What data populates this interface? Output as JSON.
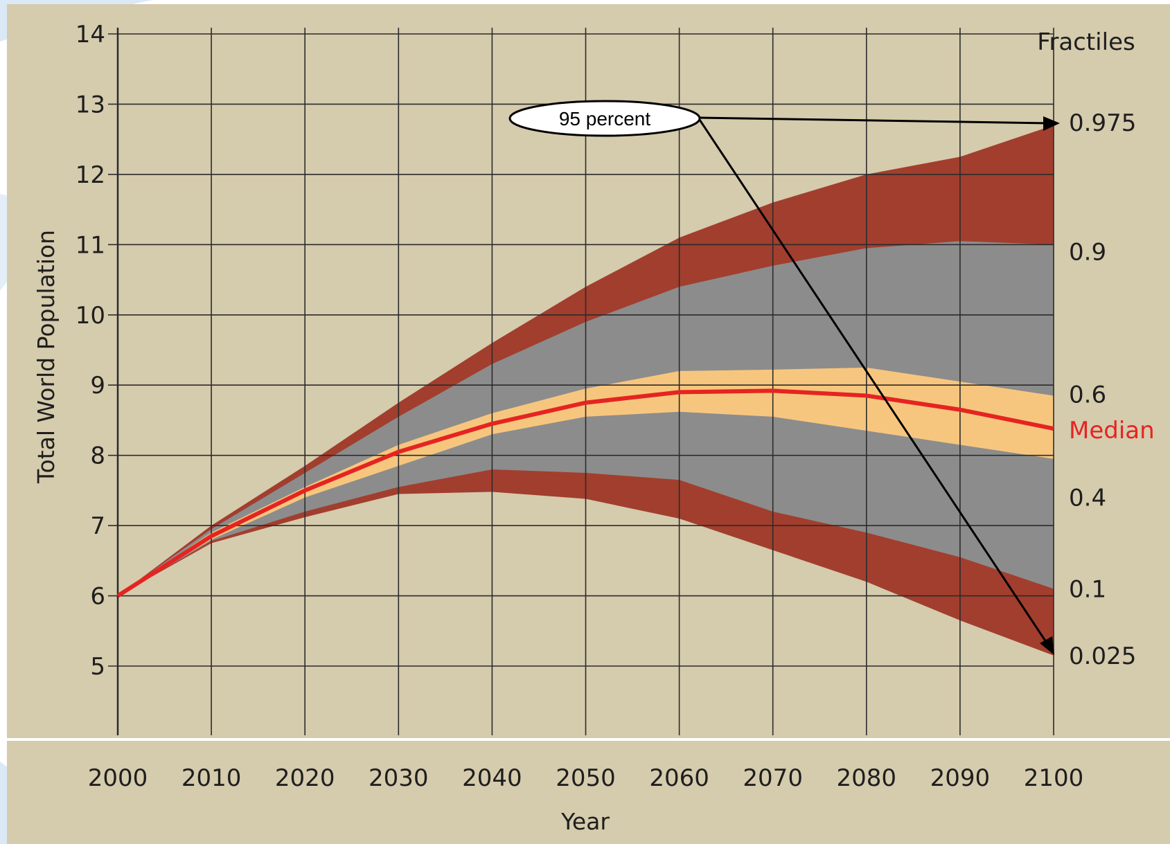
{
  "chart_data": {
    "type": "area",
    "xlabel": "Year",
    "ylabel": "Total World Population",
    "xlim": [
      2000,
      2100
    ],
    "ylim": [
      4,
      14
    ],
    "x_ticks": [
      "2000",
      "2010",
      "2020",
      "2030",
      "2040",
      "2050",
      "2060",
      "2070",
      "2080",
      "2090",
      "2100"
    ],
    "y_ticks": [
      "5",
      "6",
      "7",
      "8",
      "9",
      "10",
      "11",
      "12",
      "13",
      "14"
    ],
    "grid": true,
    "legend_title": "Fractiles",
    "x": [
      2000,
      2010,
      2020,
      2030,
      2040,
      2050,
      2060,
      2070,
      2080,
      2090,
      2100
    ],
    "series": [
      {
        "name": "0.975",
        "values": [
          6.0,
          7.0,
          7.85,
          8.75,
          9.6,
          10.4,
          11.1,
          11.6,
          12.0,
          12.25,
          12.7
        ]
      },
      {
        "name": "0.9",
        "values": [
          6.0,
          6.95,
          7.75,
          8.55,
          9.3,
          9.9,
          10.4,
          10.7,
          10.95,
          11.05,
          11.0
        ]
      },
      {
        "name": "0.6",
        "values": [
          6.0,
          6.9,
          7.55,
          8.15,
          8.6,
          8.95,
          9.2,
          9.22,
          9.25,
          9.05,
          8.85
        ]
      },
      {
        "name": "Median",
        "values": [
          6.0,
          6.85,
          7.5,
          8.05,
          8.45,
          8.75,
          8.9,
          8.92,
          8.85,
          8.65,
          8.38
        ]
      },
      {
        "name": "0.4",
        "values": [
          6.0,
          6.8,
          7.4,
          7.85,
          8.3,
          8.55,
          8.62,
          8.55,
          8.35,
          8.15,
          7.95
        ]
      },
      {
        "name": "0.1",
        "values": [
          6.0,
          6.78,
          7.2,
          7.55,
          7.8,
          7.75,
          7.65,
          7.2,
          6.9,
          6.55,
          6.1
        ]
      },
      {
        "name": "0.025",
        "values": [
          6.0,
          6.75,
          7.12,
          7.45,
          7.48,
          7.38,
          7.1,
          6.65,
          6.2,
          5.65,
          5.15
        ]
      }
    ],
    "annotations": [
      {
        "text": "95 percent",
        "arrows_to": [
          "0.975",
          "0.025"
        ]
      }
    ],
    "colors": {
      "background": "#d5cbad",
      "outer_band": "#a23e2e",
      "middle_band": "#8c8c8c",
      "inner_band": "#f7c67e",
      "median_line": "#e52421",
      "grid": "#2b2b2b"
    }
  }
}
